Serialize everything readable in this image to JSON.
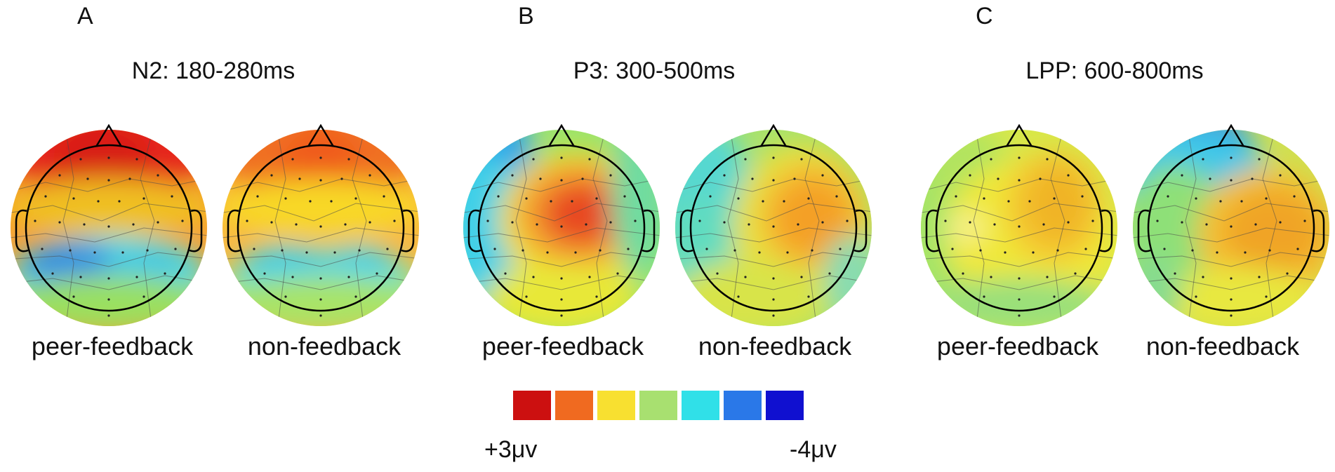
{
  "panels": [
    {
      "letter": "A",
      "title": "N2: 180-280ms",
      "maps": [
        {
          "label": "peer-feedback",
          "base_color": "#f6a030",
          "blobs": [
            {
              "color": "#e6281a"
            },
            {
              "color": "#d81e14"
            },
            {
              "color": "#f0c020"
            },
            {
              "color": "#50e0e0"
            },
            {
              "color": "#2a8ee6"
            },
            {
              "color": "#40c8e6"
            },
            {
              "color": "#9ae060"
            }
          ]
        },
        {
          "label": "non-feedback",
          "base_color": "#f8b840",
          "blobs": [
            {
              "color": "#f07020"
            },
            {
              "color": "#f05a1e"
            },
            {
              "color": "#f8d828"
            },
            {
              "color": "#70e6c0"
            },
            {
              "color": "#3ad0ea"
            },
            {
              "color": "#46d4ea"
            },
            {
              "color": "#a8e468"
            }
          ]
        }
      ]
    },
    {
      "letter": "B",
      "title": "P3: 300-500ms",
      "maps": [
        {
          "label": "peer-feedback",
          "base_color": "#9ce46a",
          "blobs": [
            {
              "color": "#30a8e8"
            },
            {
              "color": "#40d0e8"
            },
            {
              "color": "#f0e030"
            },
            {
              "color": "#f4a030"
            },
            {
              "color": "#e84a20"
            },
            {
              "color": "#e8e838"
            },
            {
              "color": "#70dca0"
            }
          ]
        },
        {
          "label": "non-feedback",
          "base_color": "#a8e26a",
          "blobs": [
            {
              "color": "#56d8d0"
            },
            {
              "color": "#60dcc0"
            },
            {
              "color": "#e8e040"
            },
            {
              "color": "#f4c030"
            },
            {
              "color": "#f4a028"
            },
            {
              "color": "#d8e44a"
            },
            {
              "color": "#88dcb0"
            }
          ]
        }
      ]
    },
    {
      "letter": "C",
      "title": "LPP: 600-800ms",
      "maps": [
        {
          "label": "peer-feedback",
          "base_color": "#d8e84a",
          "blobs": [
            {
              "color": "#a4e468"
            },
            {
              "color": "#b0e460"
            },
            {
              "color": "#f0e838"
            },
            {
              "color": "#f4c830"
            },
            {
              "color": "#f0b428"
            },
            {
              "color": "#f6f088"
            },
            {
              "color": "#9ae07a"
            }
          ]
        },
        {
          "label": "non-feedback",
          "base_color": "#d0e050",
          "blobs": [
            {
              "color": "#2a7ae8"
            },
            {
              "color": "#40c8e8"
            },
            {
              "color": "#8ee078"
            },
            {
              "color": "#f4c030"
            },
            {
              "color": "#f0a428"
            },
            {
              "color": "#e8e840"
            },
            {
              "color": "#86dc90"
            }
          ]
        }
      ]
    }
  ],
  "colorbar": {
    "colors": [
      "#cc1010",
      "#f06a20",
      "#f8e030",
      "#a8e070",
      "#30e0e8",
      "#2a78e8",
      "#1010d0"
    ],
    "max_label": "+3μv",
    "min_label": "-4μv"
  }
}
